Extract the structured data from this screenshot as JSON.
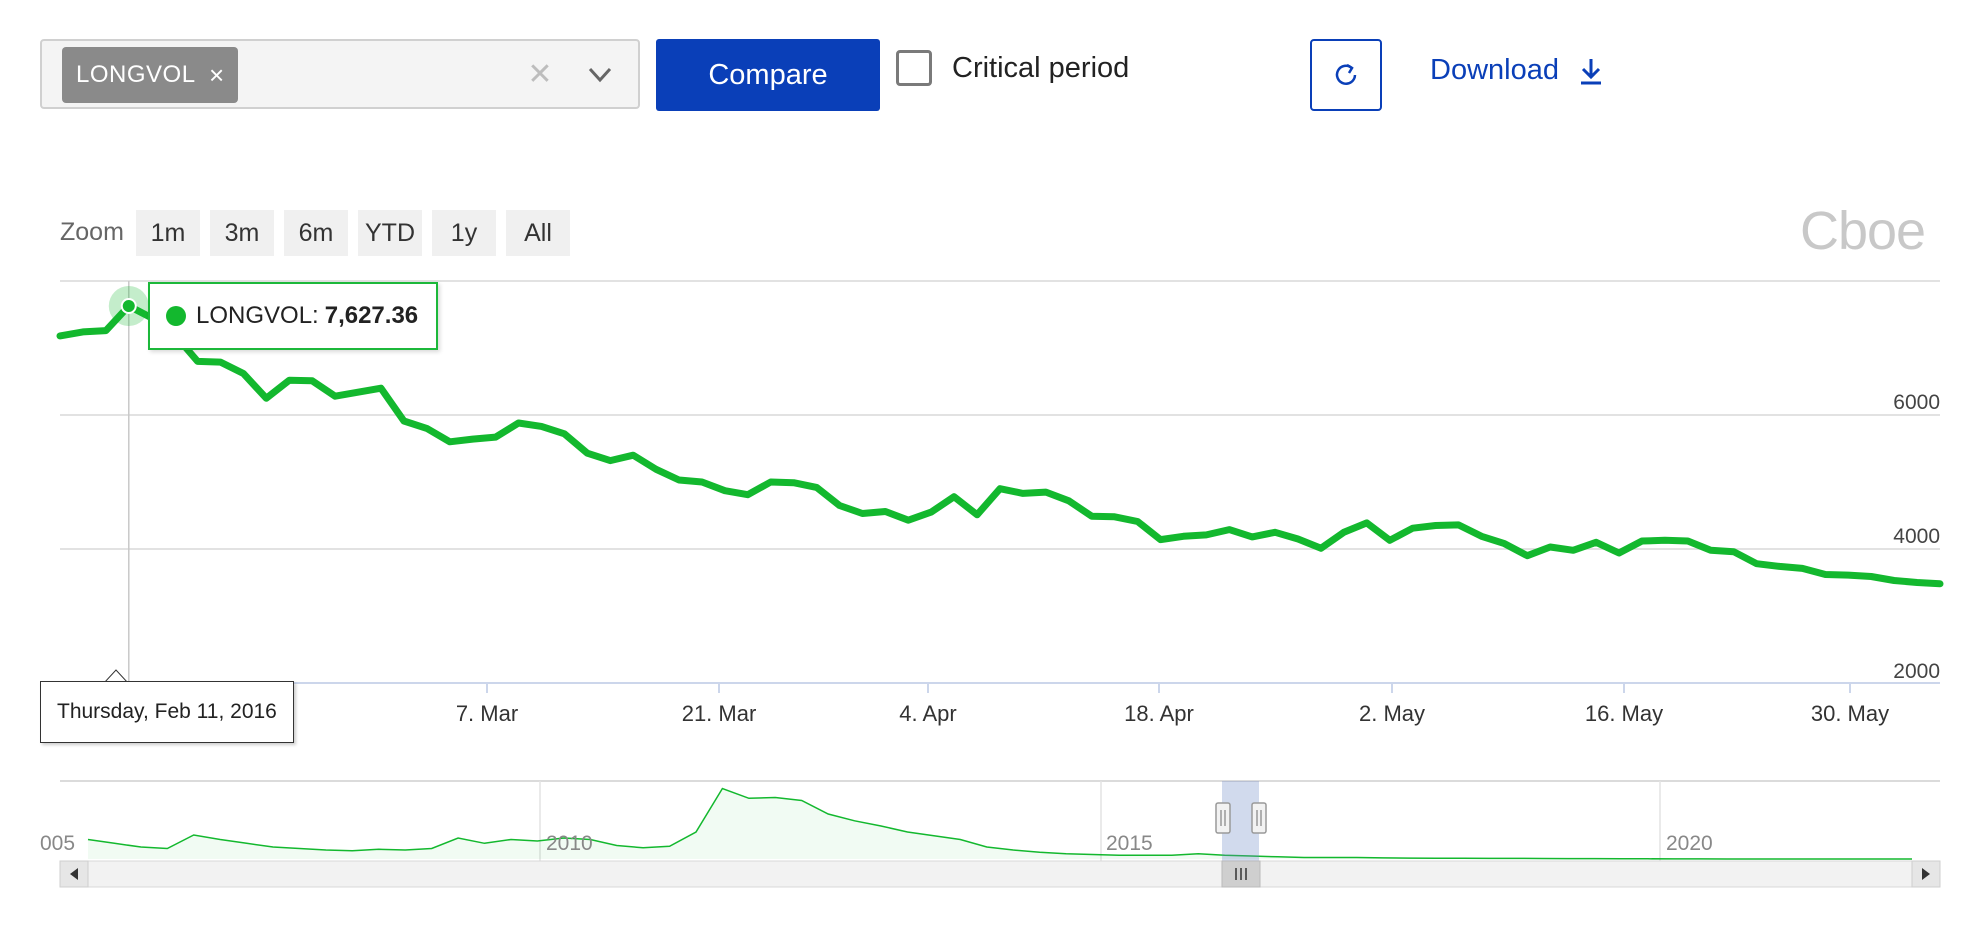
{
  "selector": {
    "chip_label": "LONGVOL",
    "chip_remove": "×",
    "clear_icon": "clear-icon",
    "caret_icon": "chevron-down-icon"
  },
  "toolbar": {
    "compare_label": "Compare",
    "critical_label": "Critical period",
    "critical_checked": false,
    "download_label": "Download",
    "reset_icon": "refresh-icon",
    "download_icon": "download-icon"
  },
  "zoom": {
    "label": "Zoom",
    "options": [
      "1m",
      "3m",
      "6m",
      "YTD",
      "1y",
      "All"
    ]
  },
  "brand": {
    "logo_text": "Cboe"
  },
  "tooltip": {
    "series": "LONGVOL:",
    "value": "7,627.36",
    "date": "Thursday, Feb 11, 2016"
  },
  "colors": {
    "line": "#13b82e",
    "accent": "#0a3fb8",
    "grid": "#d8d8d8"
  },
  "chart_data": {
    "type": "line",
    "series": [
      {
        "name": "LONGVOL",
        "values": [
          7180,
          7240,
          7260,
          7627,
          7450,
          7200,
          6800,
          6790,
          6620,
          6250,
          6520,
          6510,
          6280,
          6340,
          6400,
          5910,
          5800,
          5600,
          5640,
          5670,
          5880,
          5830,
          5720,
          5430,
          5320,
          5400,
          5190,
          5030,
          5000,
          4870,
          4810,
          5000,
          4990,
          4920,
          4650,
          4530,
          4560,
          4430,
          4550,
          4780,
          4510,
          4900,
          4830,
          4850,
          4720,
          4490,
          4480,
          4410,
          4140,
          4190,
          4210,
          4290,
          4180,
          4250,
          4150,
          4010,
          4250,
          4390,
          4130,
          4310,
          4350,
          4360,
          4190,
          4080,
          3900,
          4030,
          3980,
          4100,
          3940,
          4120,
          4130,
          4120,
          3980,
          3960,
          3780,
          3740,
          3710,
          3620,
          3610,
          3590,
          3530,
          3500,
          3480
        ]
      }
    ],
    "x_tick_labels": [
      "7. Mar",
      "21. Mar",
      "4. Apr",
      "18. Apr",
      "2. May",
      "16. May",
      "30. May"
    ],
    "y_tick_labels": [
      "2000",
      "4000",
      "6000"
    ],
    "ylim": [
      2000,
      8000
    ],
    "grid": true,
    "highlighted_point": {
      "date": "Thursday, Feb 11, 2016",
      "value": 7627.36
    },
    "navigator": {
      "labels": [
        "005",
        "2010",
        "2015",
        "2020"
      ],
      "values": [
        2200,
        2150,
        2100,
        2080,
        2260,
        2200,
        2150,
        2100,
        2080,
        2060,
        2050,
        2070,
        2060,
        2080,
        2220,
        2150,
        2200,
        2180,
        2220,
        2200,
        2120,
        2090,
        2110,
        2300,
        2880,
        2750,
        2760,
        2720,
        2540,
        2450,
        2380,
        2300,
        2250,
        2200,
        2100,
        2060,
        2030,
        2010,
        2000,
        1990,
        1990,
        1990,
        2010,
        1990,
        1980,
        1970,
        1960,
        1960,
        1960,
        1955,
        1952,
        1950,
        1950,
        1948,
        1948,
        1946,
        1945,
        1945,
        1944,
        1943,
        1942,
        1941,
        1940,
        1940,
        1940,
        1940,
        1940,
        1940,
        1940,
        1940
      ]
    }
  }
}
